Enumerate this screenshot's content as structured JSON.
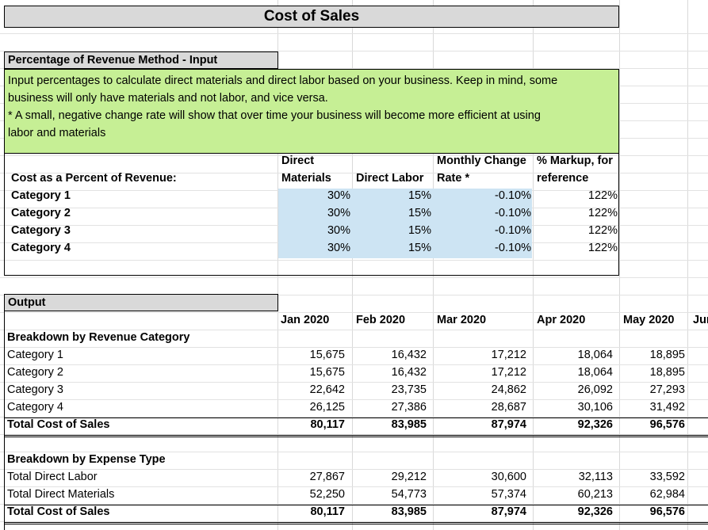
{
  "title": "Cost of Sales",
  "input_section": {
    "header": "Percentage of Revenue Method - Input",
    "note_line1": "Input percentages to calculate direct materials and direct labor based on your business. Keep in mind, some",
    "note_line2": "business will only have materials and not labor, and vice versa.",
    "note_line3": "* A small, negative change rate will show that over time your business will become more efficient at using",
    "note_line4": "labor and materials",
    "row_label": "Cost as a Percent of Revenue:",
    "col_headers": {
      "dm_1": "Direct",
      "dm_2": "Materials",
      "dl": "Direct Labor",
      "mc_1": "Monthly Change",
      "mc_2": "Rate *",
      "mk_1": "% Markup, for",
      "mk_2": "reference"
    },
    "rows": [
      {
        "label": "Category 1",
        "dm": "30%",
        "dl": "15%",
        "mc": "-0.10%",
        "mk": "122%"
      },
      {
        "label": "Category 2",
        "dm": "30%",
        "dl": "15%",
        "mc": "-0.10%",
        "mk": "122%"
      },
      {
        "label": "Category 3",
        "dm": "30%",
        "dl": "15%",
        "mc": "-0.10%",
        "mk": "122%"
      },
      {
        "label": "Category 4",
        "dm": "30%",
        "dl": "15%",
        "mc": "-0.10%",
        "mk": "122%"
      }
    ]
  },
  "output_section": {
    "header": "Output",
    "months": [
      "Jan 2020",
      "Feb 2020",
      "Mar 2020",
      "Apr 2020",
      "May 2020",
      "Jur"
    ],
    "rev_title": "Breakdown by Revenue Category",
    "rev_rows": [
      {
        "label": "Category 1",
        "v": [
          "15,675",
          "16,432",
          "17,212",
          "18,064",
          "18,895"
        ]
      },
      {
        "label": "Category 2",
        "v": [
          "15,675",
          "16,432",
          "17,212",
          "18,064",
          "18,895"
        ]
      },
      {
        "label": "Category 3",
        "v": [
          "22,642",
          "23,735",
          "24,862",
          "26,092",
          "27,293"
        ]
      },
      {
        "label": "Category 4",
        "v": [
          "26,125",
          "27,386",
          "28,687",
          "30,106",
          "31,492"
        ]
      }
    ],
    "rev_total": {
      "label": "Total Cost of Sales",
      "v": [
        "80,117",
        "83,985",
        "87,974",
        "92,326",
        "96,576"
      ]
    },
    "exp_title": "Breakdown by Expense Type",
    "exp_rows": [
      {
        "label": "Total Direct Labor",
        "v": [
          "27,867",
          "29,212",
          "30,600",
          "32,113",
          "33,592"
        ]
      },
      {
        "label": "Total Direct Materials",
        "v": [
          "52,250",
          "54,773",
          "57,374",
          "60,213",
          "62,984"
        ]
      }
    ],
    "exp_total": {
      "label": "Total Cost of Sales",
      "v": [
        "80,117",
        "83,985",
        "87,974",
        "92,326",
        "96,576"
      ]
    }
  }
}
